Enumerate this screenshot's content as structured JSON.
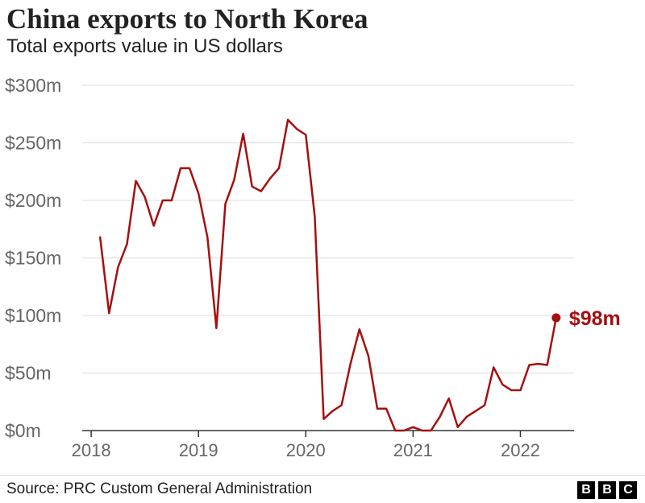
{
  "header": {
    "title": "China exports to North Korea",
    "subtitle": "Total exports value in US dollars"
  },
  "footer": {
    "source": "Source: PRC Custom General Administration",
    "logo_letters": [
      "B",
      "B",
      "C"
    ]
  },
  "colors": {
    "line": "#a50f0f",
    "grid": "#dcdcdc",
    "axis_text": "#666666"
  },
  "chart_data": {
    "type": "line",
    "y_unit": "US$ millions",
    "ylim": [
      0,
      300
    ],
    "xlim": [
      "2017-12",
      "2022-07"
    ],
    "grid": true,
    "y_ticks": [
      {
        "value": 0,
        "label": "$0m"
      },
      {
        "value": 50,
        "label": "$50m"
      },
      {
        "value": 100,
        "label": "$100m"
      },
      {
        "value": 150,
        "label": "$150m"
      },
      {
        "value": 200,
        "label": "$200m"
      },
      {
        "value": 250,
        "label": "$250m"
      },
      {
        "value": 300,
        "label": "$300m"
      }
    ],
    "x_ticks": [
      {
        "value": "2018",
        "label": "2018"
      },
      {
        "value": "2019",
        "label": "2019"
      },
      {
        "value": "2020",
        "label": "2020"
      },
      {
        "value": "2021",
        "label": "2021"
      },
      {
        "value": "2022",
        "label": "2022"
      }
    ],
    "series": [
      {
        "x": [
          "2018-02",
          "2018-03",
          "2018-04",
          "2018-05",
          "2018-06",
          "2018-07",
          "2018-08",
          "2018-09",
          "2018-10",
          "2018-11",
          "2018-12",
          "2019-01",
          "2019-02",
          "2019-03",
          "2019-04",
          "2019-05",
          "2019-06",
          "2019-07",
          "2019-08",
          "2019-09",
          "2019-10",
          "2019-11",
          "2019-12",
          "2020-01",
          "2020-02",
          "2020-03",
          "2020-04",
          "2020-05",
          "2020-06",
          "2020-07",
          "2020-08",
          "2020-09",
          "2020-10",
          "2020-11",
          "2020-12",
          "2021-01",
          "2021-02",
          "2021-03",
          "2021-04",
          "2021-05",
          "2021-06",
          "2021-07",
          "2021-08",
          "2021-09",
          "2021-10",
          "2021-11",
          "2021-12",
          "2022-01",
          "2022-02",
          "2022-03",
          "2022-04",
          "2022-05"
        ],
        "values": [
          168,
          102,
          142,
          162,
          217,
          203,
          178,
          200,
          200,
          228,
          228,
          206,
          168,
          89,
          197,
          218,
          258,
          212,
          208,
          219,
          228,
          270,
          262,
          257,
          186,
          10,
          17,
          22,
          58,
          88,
          65,
          19,
          19,
          0,
          0,
          3,
          0,
          0,
          12,
          28,
          3,
          12,
          17,
          22,
          55,
          40,
          35,
          35,
          57,
          58,
          57,
          98
        ]
      }
    ],
    "annotations": [
      {
        "x": "2022-05",
        "value": 98,
        "label": "$98m"
      }
    ]
  }
}
